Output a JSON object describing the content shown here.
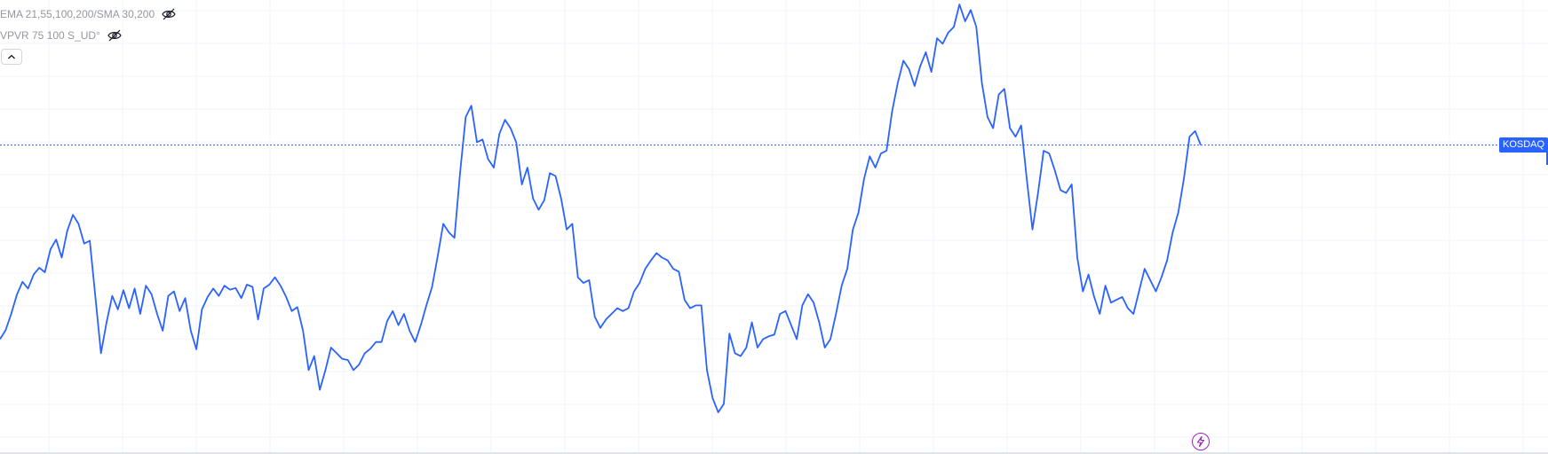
{
  "legend": {
    "indicator_1": "EMA 21,55,100,200/SMA 30,200",
    "indicator_2": "VPVR 75 100 S_UD°"
  },
  "icons": {
    "visibility_toggle": "eye-off-icon",
    "collapse": "chevron-up-icon",
    "alert": "lightning-bolt-icon"
  },
  "price_tag": {
    "label": "KOSDAQ",
    "color": "#2962ff"
  },
  "chart_data": {
    "type": "line",
    "title": "",
    "xlabel": "",
    "ylabel": "",
    "grid": true,
    "line_color": "#2962ff",
    "series": [
      {
        "values": [
          58.5,
          60.1,
          63.0,
          66.4,
          68.7,
          67.5,
          70.0,
          71.2,
          70.4,
          74.5,
          76.2,
          73.0,
          77.8,
          80.6,
          79.0,
          75.5,
          76.0,
          66.0,
          56.0,
          61.5,
          66.2,
          63.8,
          67.2,
          64.0,
          67.5,
          63.0,
          68.0,
          66.5,
          63.0,
          60.0,
          66.2,
          67.0,
          63.5,
          65.8,
          60.0,
          56.7,
          63.8,
          66.0,
          67.5,
          66.2,
          68.0,
          67.3,
          67.6,
          65.8,
          68.2,
          67.8,
          62.0,
          67.5,
          68.2,
          69.5,
          68.0,
          66.0,
          63.5,
          64.2,
          60.0,
          53.0,
          55.5,
          49.5,
          53.0,
          57.0,
          56.0,
          55.0,
          54.8,
          53.0,
          54.0,
          56.0,
          56.8,
          58.0,
          58.0,
          61.7,
          63.5,
          61.0,
          63.0,
          60.0,
          58.0,
          61.0,
          64.5,
          67.8,
          73.2,
          79.0,
          77.5,
          76.5,
          88.2,
          98.0,
          100.0,
          93.5,
          94.0,
          90.5,
          89.0,
          95.0,
          97.5,
          96.0,
          93.5,
          86.0,
          89.0,
          83.5,
          81.5,
          83.2,
          88.0,
          87.5,
          83.5,
          78.0,
          79.0,
          69.5,
          68.5,
          69.0,
          62.5,
          60.5,
          62.0,
          63.0,
          64.0,
          63.5,
          64.0,
          67.0,
          68.5,
          71.0,
          72.5,
          73.8,
          73.0,
          72.5,
          71.0,
          70.5,
          65.5,
          64.0,
          64.5,
          64.5,
          53.0,
          48.0,
          45.5,
          47.0,
          59.5,
          56.0,
          55.5,
          57.0,
          61.5,
          57.0,
          58.5,
          59.0,
          59.3,
          63.0,
          63.5,
          61.0,
          58.5,
          64.5,
          66.5,
          65.0,
          61.5,
          57.0,
          58.5,
          63.0,
          68.0,
          71.0,
          78.0,
          81.0,
          87.0,
          91.0,
          89.0,
          91.5,
          92.0,
          99.0,
          104.0,
          108.0,
          106.5,
          103.5,
          107.0,
          109.5,
          106.0,
          112.0,
          111.0,
          113.0,
          114.0,
          118.0,
          115.0,
          117.0,
          114.0,
          104.0,
          98.0,
          96.0,
          102.0,
          103.0,
          96.0,
          94.5,
          96.5,
          87.0,
          78.0,
          84.5,
          92.0,
          91.5,
          88.5,
          85.0,
          84.5,
          86.0,
          73.0,
          67.0,
          70.0,
          66.0,
          63.0,
          68.0,
          65.0,
          65.5,
          66.0,
          64.0,
          63.0,
          67.0,
          71.0,
          69.0,
          67.0,
          69.5,
          72.5,
          77.5,
          81.0,
          87.0,
          94.5,
          95.5,
          93.0
        ]
      }
    ]
  }
}
